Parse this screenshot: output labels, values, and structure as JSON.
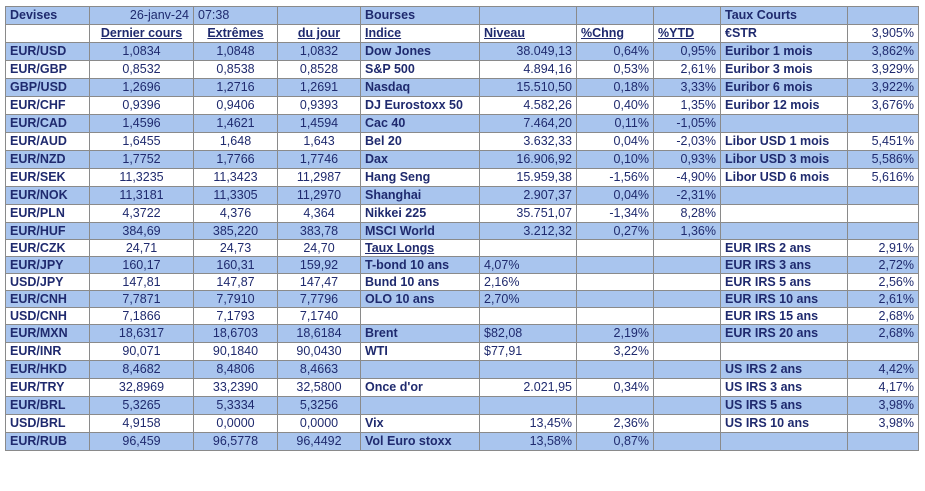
{
  "header": {
    "devises": "Devises",
    "date": "26-janv-24",
    "time": "07:38",
    "bourses": "Bourses",
    "taux_courts": "Taux Courts"
  },
  "columns": {
    "dernier": "Dernier cours",
    "extremes": "Extrêmes",
    "du_jour": "du jour",
    "indice": "Indice",
    "niveau": "Niveau",
    "chng": "%Chng",
    "ytd": "%YTD"
  },
  "rows": [
    {
      "pair": "EUR/USD",
      "last": "1,0834",
      "high": "1,0848",
      "low": "1,0832",
      "idx": "Dow Jones",
      "lvl": "38.049,13",
      "chg": "0,64%",
      "ytd": "0,95%",
      "rate": "Euribor 1 mois",
      "rval": "3,862%"
    },
    {
      "pair": "EUR/GBP",
      "last": "0,8532",
      "high": "0,8538",
      "low": "0,8528",
      "idx": "S&P 500",
      "lvl": "4.894,16",
      "chg": "0,53%",
      "ytd": "2,61%",
      "rate": "Euribor 3 mois",
      "rval": "3,929%"
    },
    {
      "pair": "GBP/USD",
      "last": "1,2696",
      "high": "1,2716",
      "low": "1,2691",
      "idx": "Nasdaq",
      "lvl": "15.510,50",
      "chg": "0,18%",
      "ytd": "3,33%",
      "rate": "Euribor 6 mois",
      "rval": "3,922%"
    },
    {
      "pair": "EUR/CHF",
      "last": "0,9396",
      "high": "0,9406",
      "low": "0,9393",
      "idx": "DJ Eurostoxx 50",
      "lvl": "4.582,26",
      "chg": "0,40%",
      "ytd": "1,35%",
      "rate": "Euribor 12 mois",
      "rval": "3,676%"
    },
    {
      "pair": "EUR/CAD",
      "last": "1,4596",
      "high": "1,4621",
      "low": "1,4594",
      "idx": "Cac 40",
      "lvl": "7.464,20",
      "chg": "0,11%",
      "ytd": "-1,05%",
      "rate": "",
      "rval": ""
    },
    {
      "pair": "EUR/AUD",
      "last": "1,6455",
      "high": "1,648",
      "low": "1,643",
      "idx": "Bel 20",
      "lvl": "3.632,33",
      "chg": "0,04%",
      "ytd": "-2,03%",
      "rate": "Libor USD 1 mois",
      "rval": "5,451%"
    },
    {
      "pair": "EUR/NZD",
      "last": "1,7752",
      "high": "1,7766",
      "low": "1,7746",
      "idx": "Dax",
      "lvl": "16.906,92",
      "chg": "0,10%",
      "ytd": "0,93%",
      "rate": "Libor USD 3 mois",
      "rval": "5,586%"
    },
    {
      "pair": "EUR/SEK",
      "last": "11,3235",
      "high": "11,3423",
      "low": "11,2987",
      "idx": "Hang Seng",
      "lvl": "15.959,38",
      "chg": "-1,56%",
      "ytd": "-4,90%",
      "rate": "Libor USD 6 mois",
      "rval": "5,616%"
    },
    {
      "pair": "EUR/NOK",
      "last": "11,3181",
      "high": "11,3305",
      "low": "11,2970",
      "idx": "Shanghai",
      "lvl": "2.907,37",
      "chg": "0,04%",
      "ytd": "-2,31%",
      "rate": "",
      "rval": ""
    },
    {
      "pair": "EUR/PLN",
      "last": "4,3722",
      "high": "4,376",
      "low": "4,364",
      "idx": "Nikkei 225",
      "lvl": "35.751,07",
      "chg": "-1,34%",
      "ytd": "8,28%",
      "rate": "",
      "rval": ""
    },
    {
      "pair": "EUR/HUF",
      "last": "384,69",
      "high": "385,220",
      "low": "383,78",
      "idx": "MSCI World",
      "lvl": "3.212,32",
      "chg": "0,27%",
      "ytd": "1,36%",
      "rate": "",
      "rval": ""
    },
    {
      "pair": "EUR/CZK",
      "last": "24,71",
      "high": "24,73",
      "low": "24,70",
      "idx": "Taux Longs",
      "lvl": "",
      "chg": "",
      "ytd": "",
      "rate": "EUR IRS 2 ans",
      "rval": "2,91%"
    },
    {
      "pair": "EUR/JPY",
      "last": "160,17",
      "high": "160,31",
      "low": "159,92",
      "idx": "T-bond 10 ans",
      "lvl": "4,07%",
      "chg": "",
      "ytd": "",
      "rate": "EUR IRS 3 ans",
      "rval": "2,72%"
    },
    {
      "pair": "USD/JPY",
      "last": "147,81",
      "high": "147,87",
      "low": "147,47",
      "idx": "Bund 10 ans",
      "lvl": "2,16%",
      "chg": "",
      "ytd": "",
      "rate": "EUR IRS 5 ans",
      "rval": "2,56%"
    },
    {
      "pair": "EUR/CNH",
      "last": "7,7871",
      "high": "7,7910",
      "low": "7,7796",
      "idx": "OLO 10 ans",
      "lvl": "2,70%",
      "chg": "",
      "ytd": "",
      "rate": "EUR IRS 10 ans",
      "rval": "2,61%"
    },
    {
      "pair": "USD/CNH",
      "last": "7,1866",
      "high": "7,1793",
      "low": "7,1740",
      "idx": "",
      "lvl": "",
      "chg": "",
      "ytd": "",
      "rate": "EUR IRS 15 ans",
      "rval": "2,68%"
    },
    {
      "pair": "EUR/MXN",
      "last": "18,6317",
      "high": "18,6703",
      "low": "18,6184",
      "idx": "Brent",
      "lvl": "$82,08",
      "chg": "2,19%",
      "ytd": "",
      "rate": "EUR IRS 20 ans",
      "rval": "2,68%"
    },
    {
      "pair": "EUR/INR",
      "last": "90,071",
      "high": "90,1840",
      "low": "90,0430",
      "idx": "WTI",
      "lvl": "$77,91",
      "chg": "3,22%",
      "ytd": "",
      "rate": "",
      "rval": ""
    },
    {
      "pair": "EUR/HKD",
      "last": "8,4682",
      "high": "8,4806",
      "low": "8,4663",
      "idx": "",
      "lvl": "",
      "chg": "",
      "ytd": "",
      "rate": "US IRS 2 ans",
      "rval": "4,42%"
    },
    {
      "pair": "EUR/TRY",
      "last": "32,8969",
      "high": "33,2390",
      "low": "32,5800",
      "idx": "Once d'or",
      "lvl": "2.021,95",
      "chg": "0,34%",
      "ytd": "",
      "rate": "US IRS 3 ans",
      "rval": "4,17%"
    },
    {
      "pair": "EUR/BRL",
      "last": "5,3265",
      "high": "5,3334",
      "low": "5,3256",
      "idx": "",
      "lvl": "",
      "chg": "",
      "ytd": "",
      "rate": "US IRS 5 ans",
      "rval": "3,98%"
    },
    {
      "pair": "USD/BRL",
      "last": "4,9158",
      "high": "0,0000",
      "low": "0,0000",
      "idx": "Vix",
      "lvl": "13,45%",
      "chg": "2,36%",
      "ytd": "",
      "rate": "US IRS 10 ans",
      "rval": "3,98%"
    },
    {
      "pair": "EUR/RUB",
      "last": "96,459",
      "high": "96,5778",
      "low": "96,4492",
      "idx": "Vol Euro stoxx",
      "lvl": "13,58%",
      "chg": "0,87%",
      "ytd": "",
      "rate": "",
      "rval": ""
    }
  ],
  "estr": {
    "label": "€STR",
    "value": "3,905%"
  },
  "colors": {
    "band": "#a9c5ee",
    "text": "#1f2a6e",
    "border": "#8a8a8a"
  }
}
